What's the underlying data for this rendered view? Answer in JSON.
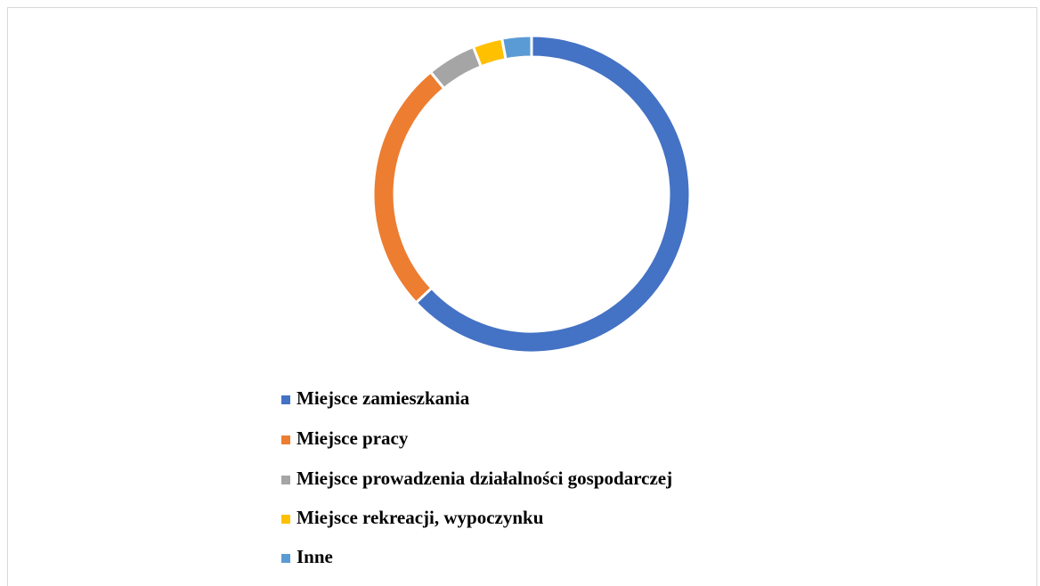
{
  "chart_data": {
    "type": "donut",
    "categories": [
      "Miejsce zamieszkania",
      "Miejsce pracy",
      "Miejsce prowadzenia działalności gospodarczej",
      "Miejsce rekreacji, wypoczynku",
      "Inne"
    ],
    "values": [
      63,
      26,
      5,
      3,
      3
    ],
    "colors": [
      "#4472c4",
      "#ed7d31",
      "#a5a5a5",
      "#ffc000",
      "#5b9bd5"
    ],
    "legend": "bottom"
  }
}
